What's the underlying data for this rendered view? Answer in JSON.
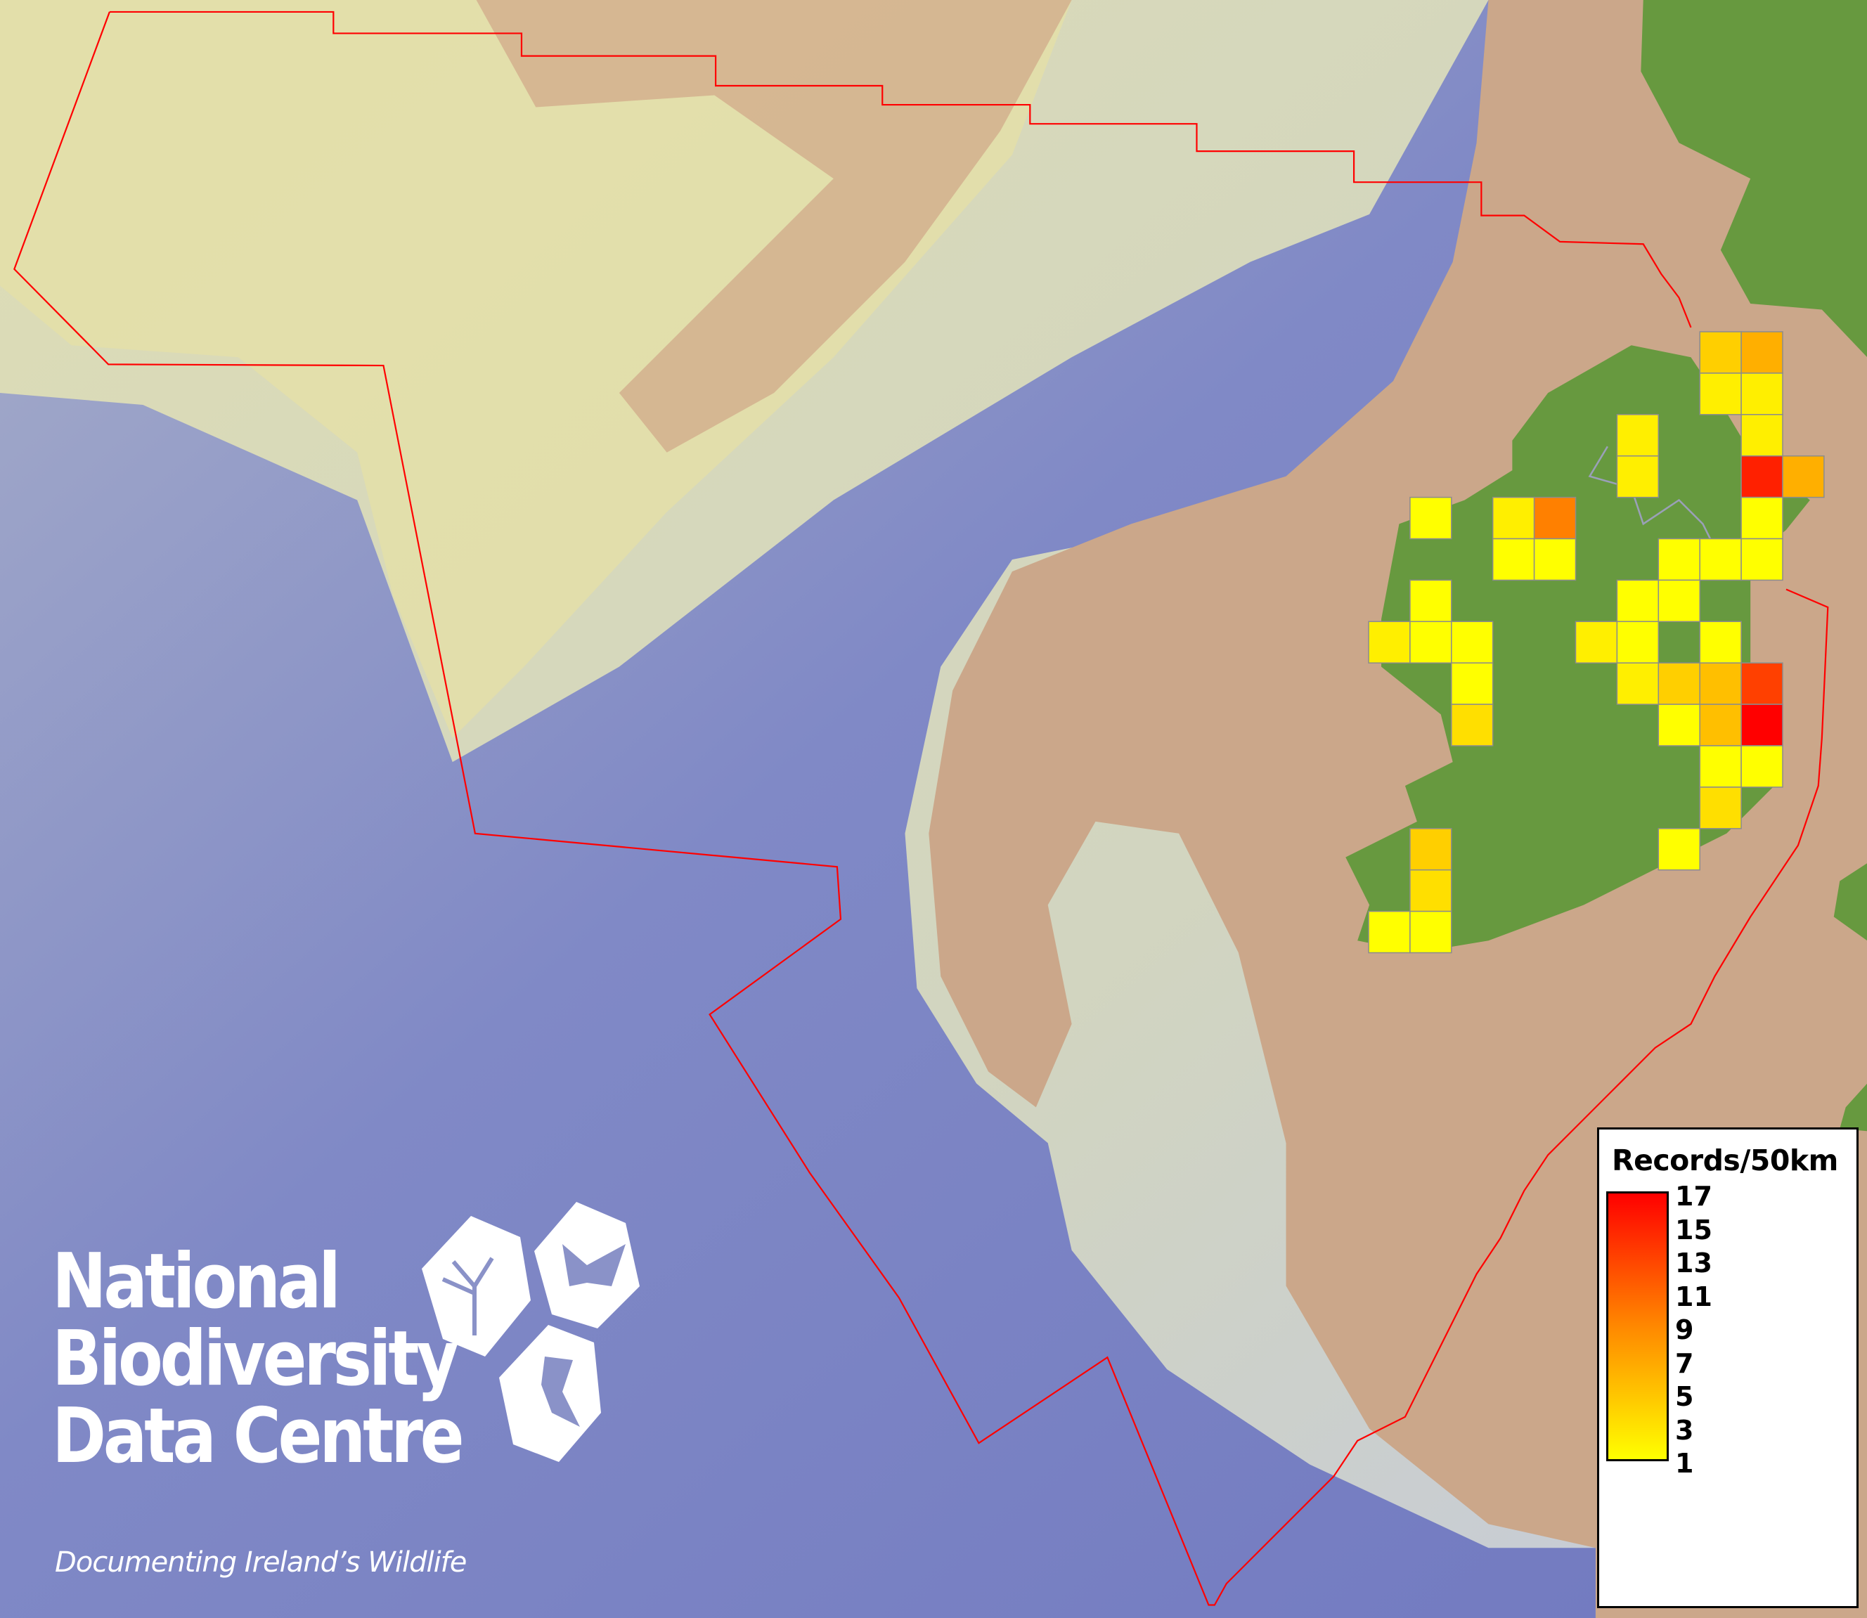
{
  "map": {
    "colors": {
      "deep_ocean": "#7d86c5",
      "shelf": "#dcdcb2",
      "land_sea_tan": "#cba78a",
      "ireland_green": "#67993f",
      "boundary": "#ff0000",
      "cell_border": "#8c8c8c"
    },
    "grid_cells": [
      {
        "row": 0,
        "col": 8,
        "records": 4
      },
      {
        "row": 0,
        "col": 9,
        "records": 6
      },
      {
        "row": 1,
        "col": 8,
        "records": 2
      },
      {
        "row": 1,
        "col": 9,
        "records": 2
      },
      {
        "row": 2,
        "col": 6,
        "records": 2
      },
      {
        "row": 2,
        "col": 9,
        "records": 2
      },
      {
        "row": 3,
        "col": 6,
        "records": 2
      },
      {
        "row": 3,
        "col": 9,
        "records": 15
      },
      {
        "row": 3,
        "col": 10,
        "records": 6
      },
      {
        "row": 4,
        "col": 1,
        "records": 1
      },
      {
        "row": 4,
        "col": 3,
        "records": 2
      },
      {
        "row": 4,
        "col": 4,
        "records": 9
      },
      {
        "row": 4,
        "col": 9,
        "records": 1
      },
      {
        "row": 5,
        "col": 3,
        "records": 1
      },
      {
        "row": 5,
        "col": 4,
        "records": 1
      },
      {
        "row": 5,
        "col": 7,
        "records": 1
      },
      {
        "row": 5,
        "col": 8,
        "records": 1
      },
      {
        "row": 5,
        "col": 9,
        "records": 1
      },
      {
        "row": 6,
        "col": 1,
        "records": 1
      },
      {
        "row": 6,
        "col": 6,
        "records": 1
      },
      {
        "row": 6,
        "col": 7,
        "records": 1
      },
      {
        "row": 7,
        "col": 0,
        "records": 2
      },
      {
        "row": 7,
        "col": 1,
        "records": 1
      },
      {
        "row": 7,
        "col": 2,
        "records": 1
      },
      {
        "row": 7,
        "col": 5,
        "records": 2
      },
      {
        "row": 7,
        "col": 6,
        "records": 1
      },
      {
        "row": 7,
        "col": 8,
        "records": 1
      },
      {
        "row": 8,
        "col": 2,
        "records": 1
      },
      {
        "row": 8,
        "col": 6,
        "records": 2
      },
      {
        "row": 8,
        "col": 7,
        "records": 4
      },
      {
        "row": 8,
        "col": 8,
        "records": 5
      },
      {
        "row": 8,
        "col": 9,
        "records": 13
      },
      {
        "row": 9,
        "col": 2,
        "records": 3
      },
      {
        "row": 9,
        "col": 7,
        "records": 1
      },
      {
        "row": 9,
        "col": 8,
        "records": 5
      },
      {
        "row": 9,
        "col": 9,
        "records": 17
      },
      {
        "row": 10,
        "col": 8,
        "records": 1
      },
      {
        "row": 10,
        "col": 9,
        "records": 1
      },
      {
        "row": 11,
        "col": 8,
        "records": 3
      },
      {
        "row": 12,
        "col": 1,
        "records": 4
      },
      {
        "row": 12,
        "col": 7,
        "records": 1
      },
      {
        "row": 13,
        "col": 1,
        "records": 3
      },
      {
        "row": 14,
        "col": 0,
        "records": 1
      },
      {
        "row": 14,
        "col": 1,
        "records": 1
      }
    ]
  },
  "legend": {
    "title": "Records/50km",
    "min": 1,
    "max": 17,
    "ramp_colors": [
      "#ffff00",
      "#ff8800",
      "#ff0000"
    ],
    "ticks": [
      "17",
      "15",
      "13",
      "11",
      "9",
      "7",
      "5",
      "3",
      "1"
    ]
  },
  "logo": {
    "line1": "National",
    "line2": "Biodiversity",
    "line3": "Data Centre",
    "tagline": "Documenting Ireland’s Wildlife"
  }
}
